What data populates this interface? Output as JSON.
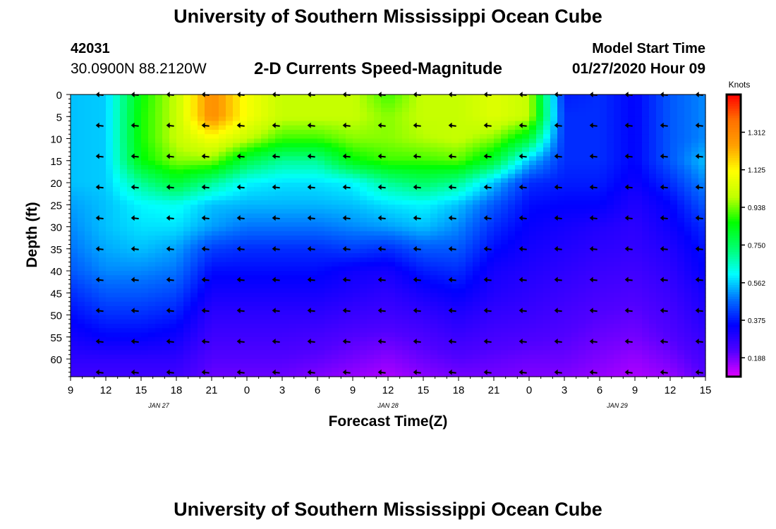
{
  "header": {
    "main_title": "University of Southern Mississippi Ocean Cube",
    "station_id": "42031",
    "station_location": "30.0900N 88.2120W",
    "model_label": "Model Start Time",
    "model_time": "01/27/2020 Hour 09",
    "footer_title": "University of Southern Mississippi Ocean Cube"
  },
  "chart_data": {
    "type": "heatmap",
    "title": "2-D Currents Speed-Magnitude",
    "xlabel": "Forecast Time(Z)",
    "ylabel": "Depth (ft)",
    "x_tick_labels": [
      "9",
      "12",
      "15",
      "18",
      "21",
      "0",
      "3",
      "6",
      "9",
      "12",
      "15",
      "18",
      "21",
      "0",
      "3",
      "6",
      "9",
      "12",
      "15"
    ],
    "x_date_labels": [
      {
        "label": "JAN 27",
        "tick_index": 2.5
      },
      {
        "label": "JAN 28",
        "tick_index": 9
      },
      {
        "label": "JAN 29",
        "tick_index": 15.5
      }
    ],
    "y_tick_labels": [
      "0",
      "5",
      "10",
      "15",
      "20",
      "25",
      "30",
      "35",
      "40",
      "45",
      "50",
      "55",
      "60"
    ],
    "ylim": [
      0,
      64
    ],
    "xlim_hours": [
      0,
      54
    ],
    "colorbar": {
      "title": "Knots",
      "tick_labels": [
        "0.188",
        "0.375",
        "0.562",
        "0.750",
        "0.938",
        "1.125",
        "1.312"
      ],
      "tick_values": [
        0.188,
        0.375,
        0.562,
        0.75,
        0.938,
        1.125,
        1.312
      ],
      "range": [
        0.094,
        1.5
      ],
      "colors": [
        "#e000ff",
        "#5000ff",
        "#0000ff",
        "#0070ff",
        "#00ffff",
        "#00ff70",
        "#00ff00",
        "#c0ff00",
        "#ffff00",
        "#ffa000",
        "#ff7000",
        "#ff0000"
      ]
    },
    "speed_grid": {
      "hours": [
        0,
        3,
        6,
        9,
        12,
        15,
        18,
        21,
        24,
        27,
        30,
        33,
        36,
        39,
        42,
        45,
        48,
        51,
        54
      ],
      "depths": [
        0,
        5,
        10,
        15,
        20,
        25,
        30,
        35,
        40,
        45,
        50,
        55,
        60,
        64
      ],
      "values": [
        [
          0.55,
          0.56,
          0.86,
          1.0,
          1.3,
          1.1,
          1.0,
          1.0,
          1.0,
          0.9,
          1.0,
          1.0,
          1.05,
          1.0,
          0.38,
          0.4,
          0.35,
          0.45,
          0.5
        ],
        [
          0.55,
          0.56,
          0.87,
          1.0,
          1.3,
          1.1,
          1.0,
          1.0,
          1.0,
          0.95,
          1.0,
          1.0,
          1.05,
          1.0,
          0.4,
          0.4,
          0.35,
          0.45,
          0.5
        ],
        [
          0.55,
          0.56,
          0.87,
          1.0,
          1.1,
          1.0,
          0.9,
          0.9,
          0.95,
          0.95,
          0.98,
          1.0,
          0.95,
          0.8,
          0.4,
          0.4,
          0.35,
          0.45,
          0.5
        ],
        [
          0.55,
          0.56,
          0.85,
          0.95,
          0.95,
          0.78,
          0.7,
          0.7,
          0.85,
          0.9,
          0.9,
          0.92,
          0.8,
          0.55,
          0.4,
          0.4,
          0.35,
          0.45,
          0.55
        ],
        [
          0.55,
          0.56,
          0.7,
          0.8,
          0.7,
          0.6,
          0.58,
          0.58,
          0.6,
          0.7,
          0.75,
          0.7,
          0.55,
          0.4,
          0.38,
          0.38,
          0.33,
          0.4,
          0.5
        ],
        [
          0.52,
          0.55,
          0.6,
          0.62,
          0.55,
          0.54,
          0.54,
          0.54,
          0.55,
          0.58,
          0.6,
          0.55,
          0.45,
          0.36,
          0.35,
          0.35,
          0.3,
          0.35,
          0.45
        ],
        [
          0.5,
          0.55,
          0.58,
          0.58,
          0.52,
          0.48,
          0.48,
          0.48,
          0.5,
          0.52,
          0.55,
          0.5,
          0.4,
          0.34,
          0.32,
          0.3,
          0.28,
          0.33,
          0.4
        ],
        [
          0.48,
          0.53,
          0.55,
          0.52,
          0.42,
          0.4,
          0.4,
          0.4,
          0.42,
          0.4,
          0.45,
          0.45,
          0.36,
          0.32,
          0.3,
          0.28,
          0.27,
          0.3,
          0.37
        ],
        [
          0.45,
          0.5,
          0.5,
          0.48,
          0.36,
          0.36,
          0.36,
          0.36,
          0.33,
          0.32,
          0.38,
          0.4,
          0.32,
          0.3,
          0.28,
          0.26,
          0.25,
          0.28,
          0.35
        ],
        [
          0.4,
          0.45,
          0.45,
          0.43,
          0.32,
          0.32,
          0.32,
          0.32,
          0.3,
          0.28,
          0.32,
          0.35,
          0.3,
          0.28,
          0.26,
          0.24,
          0.23,
          0.26,
          0.32
        ],
        [
          0.36,
          0.4,
          0.4,
          0.38,
          0.28,
          0.28,
          0.28,
          0.28,
          0.26,
          0.25,
          0.27,
          0.3,
          0.27,
          0.26,
          0.24,
          0.22,
          0.21,
          0.24,
          0.3
        ],
        [
          0.32,
          0.35,
          0.35,
          0.33,
          0.25,
          0.25,
          0.25,
          0.24,
          0.22,
          0.21,
          0.23,
          0.26,
          0.24,
          0.23,
          0.22,
          0.2,
          0.19,
          0.22,
          0.27
        ],
        [
          0.28,
          0.28,
          0.28,
          0.28,
          0.22,
          0.22,
          0.22,
          0.21,
          0.19,
          0.17,
          0.2,
          0.22,
          0.21,
          0.2,
          0.2,
          0.18,
          0.16,
          0.19,
          0.24
        ],
        [
          0.25,
          0.25,
          0.25,
          0.25,
          0.2,
          0.2,
          0.2,
          0.18,
          0.16,
          0.14,
          0.17,
          0.19,
          0.19,
          0.18,
          0.18,
          0.16,
          0.14,
          0.16,
          0.22
        ]
      ]
    },
    "vector_grid": {
      "hours": [
        2.5,
        5.5,
        8.5,
        11.5,
        14.5,
        17.5,
        20.5,
        23.5,
        26.5,
        29.5,
        32.5,
        35.5,
        38.5,
        41.5,
        44.5,
        47.5,
        50.5,
        53.5
      ],
      "depths": [
        0,
        7,
        14,
        21,
        28,
        35,
        42,
        49,
        56,
        63
      ],
      "direction": "west"
    }
  }
}
